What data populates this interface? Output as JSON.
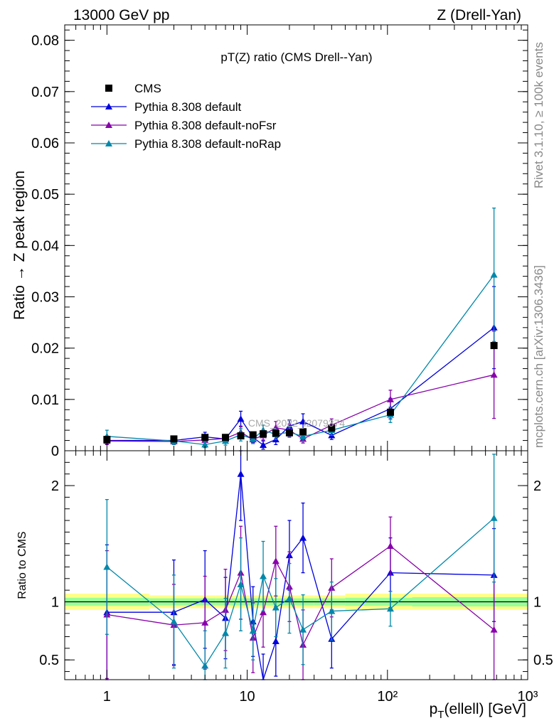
{
  "header": {
    "left": "13000 GeV pp",
    "right": "Z (Drell-Yan)"
  },
  "side": {
    "rivet": "Rivet 3.1.10, ≥ 100k events",
    "mcplots": "mcplots.cern.ch [arXiv:1306.3436]"
  },
  "watermark": "CMS_2022_I2079374",
  "colors": {
    "cms": "#000000",
    "default": "#0000dd",
    "noFsr": "#8800aa",
    "noRap": "#0088aa",
    "band_inner": "#99ff99",
    "band_outer": "#ffff88"
  },
  "chart_data": [
    {
      "type": "line",
      "title": "pT(Z) ratio (CMS Drell--Yan)",
      "ylabel": "Ratio → Z peak region",
      "xscale": "log",
      "xlim": [
        0.5,
        1000
      ],
      "ylim": [
        0,
        0.083
      ],
      "yticks": [
        "0",
        "0.01",
        "0.02",
        "0.03",
        "0.04",
        "0.05",
        "0.06",
        "0.07",
        "0.08"
      ],
      "legend_position": "top-left",
      "x": [
        1,
        3,
        5,
        7,
        9,
        11,
        13,
        16,
        20,
        25,
        40,
        105,
        575
      ],
      "series": [
        {
          "name": "CMS",
          "marker": "square",
          "values": [
            0.0022,
            0.0023,
            0.0026,
            0.0026,
            0.0029,
            0.0031,
            0.0033,
            0.0034,
            0.0035,
            0.0037,
            0.0044,
            0.0075,
            0.0205
          ]
        },
        {
          "name": "Pythia 8.308 default",
          "marker": "triangle",
          "values": [
            0.002,
            0.002,
            0.0027,
            0.0023,
            0.0062,
            0.0026,
            0.0011,
            0.0022,
            0.0048,
            0.0057,
            0.003,
            0.0082,
            0.024
          ],
          "errors": [
            0.0007,
            0.0007,
            0.0009,
            0.0008,
            0.0015,
            0.001,
            0.0008,
            0.001,
            0.0012,
            0.0015,
            0.0008,
            0.002,
            0.008
          ]
        },
        {
          "name": "Pythia 8.308 default-noFsr",
          "marker": "triangle",
          "values": [
            0.0019,
            0.0018,
            0.0021,
            0.0024,
            0.0036,
            0.0022,
            0.003,
            0.0045,
            0.004,
            0.0023,
            0.005,
            0.01,
            0.0148
          ],
          "errors": [
            0.0007,
            0.0006,
            0.0008,
            0.0007,
            0.0012,
            0.0008,
            0.0009,
            0.0012,
            0.0012,
            0.0008,
            0.0012,
            0.0018,
            0.0085
          ]
        },
        {
          "name": "Pythia 8.308 default-noRap",
          "marker": "triangle",
          "values": [
            0.0028,
            0.0019,
            0.0012,
            0.0019,
            0.0031,
            0.0023,
            0.004,
            0.0032,
            0.0036,
            0.0028,
            0.004,
            0.007,
            0.0343
          ],
          "errors": [
            0.0012,
            0.0007,
            0.0006,
            0.0008,
            0.0012,
            0.0009,
            0.001,
            0.001,
            0.001,
            0.001,
            0.001,
            0.0015,
            0.013
          ]
        }
      ]
    },
    {
      "type": "line",
      "ylabel": "Ratio to CMS",
      "xlabel": "p_T(ellell) [GeV]",
      "xscale": "log",
      "xlim": [
        0.5,
        1000
      ],
      "ylim": [
        0.33,
        2.3
      ],
      "yticks": [
        "0.5",
        "1",
        "2"
      ],
      "xticks": [
        "1",
        "10",
        "10²",
        "10³"
      ],
      "x": [
        1,
        3,
        5,
        7,
        9,
        11,
        13,
        16,
        20,
        25,
        40,
        105,
        575
      ],
      "reference_band": {
        "edges": [
          0.5,
          2,
          6,
          8,
          10,
          12,
          14,
          18,
          22,
          30,
          50,
          150,
          1000
        ],
        "inner": [
          0.035,
          0.03,
          0.03,
          0.03,
          0.03,
          0.03,
          0.03,
          0.03,
          0.03,
          0.03,
          0.035,
          0.04
        ],
        "outer": [
          0.07,
          0.055,
          0.055,
          0.055,
          0.055,
          0.055,
          0.055,
          0.055,
          0.055,
          0.055,
          0.07,
          0.07
        ]
      },
      "series": [
        {
          "name": "Pythia 8.308 default",
          "values": [
            0.91,
            0.91,
            1.02,
            0.86,
            2.1,
            0.83,
            0.25,
            0.66,
            1.4,
            1.55,
            0.68,
            1.25,
            1.23
          ],
          "errors": [
            0.58,
            0.45,
            0.42,
            0.35,
            0.4,
            0.3,
            0.3,
            0.3,
            0.3,
            0.3,
            0.25,
            0.3,
            0.4
          ]
        },
        {
          "name": "Pythia 8.308 default-noFsr",
          "values": [
            0.89,
            0.8,
            0.82,
            0.93,
            1.25,
            0.69,
            0.91,
            1.35,
            1.13,
            0.63,
            1.12,
            1.48,
            0.76
          ],
          "errors": [
            0.55,
            0.35,
            0.4,
            0.35,
            0.4,
            0.3,
            0.3,
            0.3,
            0.3,
            0.3,
            0.25,
            0.25,
            0.45
          ]
        },
        {
          "name": "Pythia 8.308 default-noRap",
          "values": [
            1.3,
            0.83,
            0.45,
            0.73,
            1.15,
            0.75,
            1.22,
            0.95,
            1.03,
            0.76,
            0.92,
            0.94,
            1.72
          ],
          "errors": [
            0.58,
            0.4,
            0.3,
            0.3,
            0.4,
            0.25,
            0.3,
            0.25,
            0.3,
            0.3,
            0.25,
            0.15,
            0.55
          ]
        }
      ]
    }
  ]
}
